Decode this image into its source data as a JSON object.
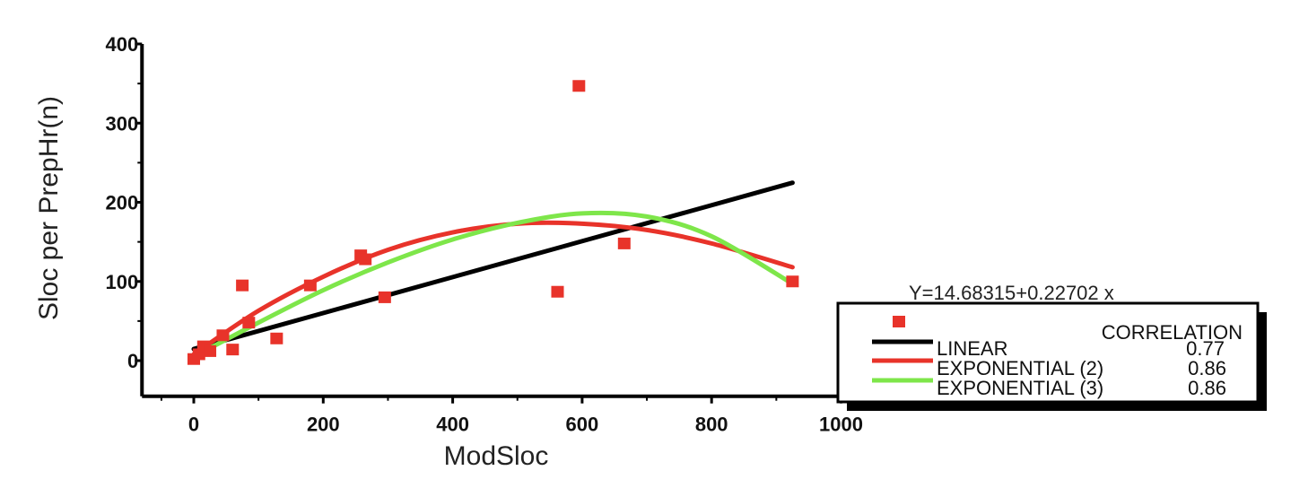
{
  "chart_data": {
    "type": "scatter",
    "xlabel": "ModSloc",
    "ylabel": "Sloc per PrepHr(n)",
    "xlim": [
      -80,
      1000
    ],
    "ylim": [
      -45,
      400
    ],
    "x_ticks": [
      0,
      200,
      400,
      600,
      800,
      1000
    ],
    "x_tick_labels": [
      "0",
      "200",
      "400",
      "600",
      "800",
      "1000"
    ],
    "y_ticks": [
      0,
      100,
      200,
      300,
      400
    ],
    "y_tick_labels": [
      "0",
      "100",
      "200",
      "300",
      "400"
    ],
    "grid": false,
    "legend_position": "bottom-right",
    "points": {
      "color": "#e8332a",
      "x": [
        0,
        8,
        15,
        25,
        45,
        60,
        75,
        85,
        128,
        180,
        258,
        265,
        295,
        562,
        595,
        665,
        925
      ],
      "y": [
        2,
        8,
        18,
        12,
        32,
        14,
        95,
        48,
        28,
        95,
        133,
        128,
        80,
        87,
        347,
        148,
        100
      ]
    },
    "series": [
      {
        "name": "LINEAR",
        "color": "#000000",
        "curve": "linear",
        "x": [
          0,
          925
        ],
        "y": [
          14.68,
          224.68
        ]
      },
      {
        "name": "EXPONENTIAL (2)",
        "color": "#e8332a",
        "curve": "quadratic",
        "x": [
          0,
          100,
          200,
          300,
          400,
          500,
          600,
          700,
          800,
          925
        ],
        "y": [
          8,
          63,
          106,
          140,
          162,
          173,
          173,
          165,
          148,
          118
        ]
      },
      {
        "name": "EXPONENTIAL (3)",
        "color": "#7ee64a",
        "curve": "cubic",
        "x": [
          0,
          100,
          200,
          300,
          400,
          500,
          600,
          700,
          800,
          925
        ],
        "y": [
          5,
          48,
          89,
          124,
          153,
          174,
          186,
          182,
          157,
          97
        ]
      }
    ],
    "legend": {
      "header": "CORRELATION",
      "entries": [
        {
          "name": "LINEAR",
          "value": "0.77"
        },
        {
          "name": "EXPONENTIAL (2)",
          "value": "0.86"
        },
        {
          "name": "EXPONENTIAL (3)",
          "value": "0.86"
        }
      ]
    },
    "equation": "Y=14.68315+0.22702 x"
  }
}
